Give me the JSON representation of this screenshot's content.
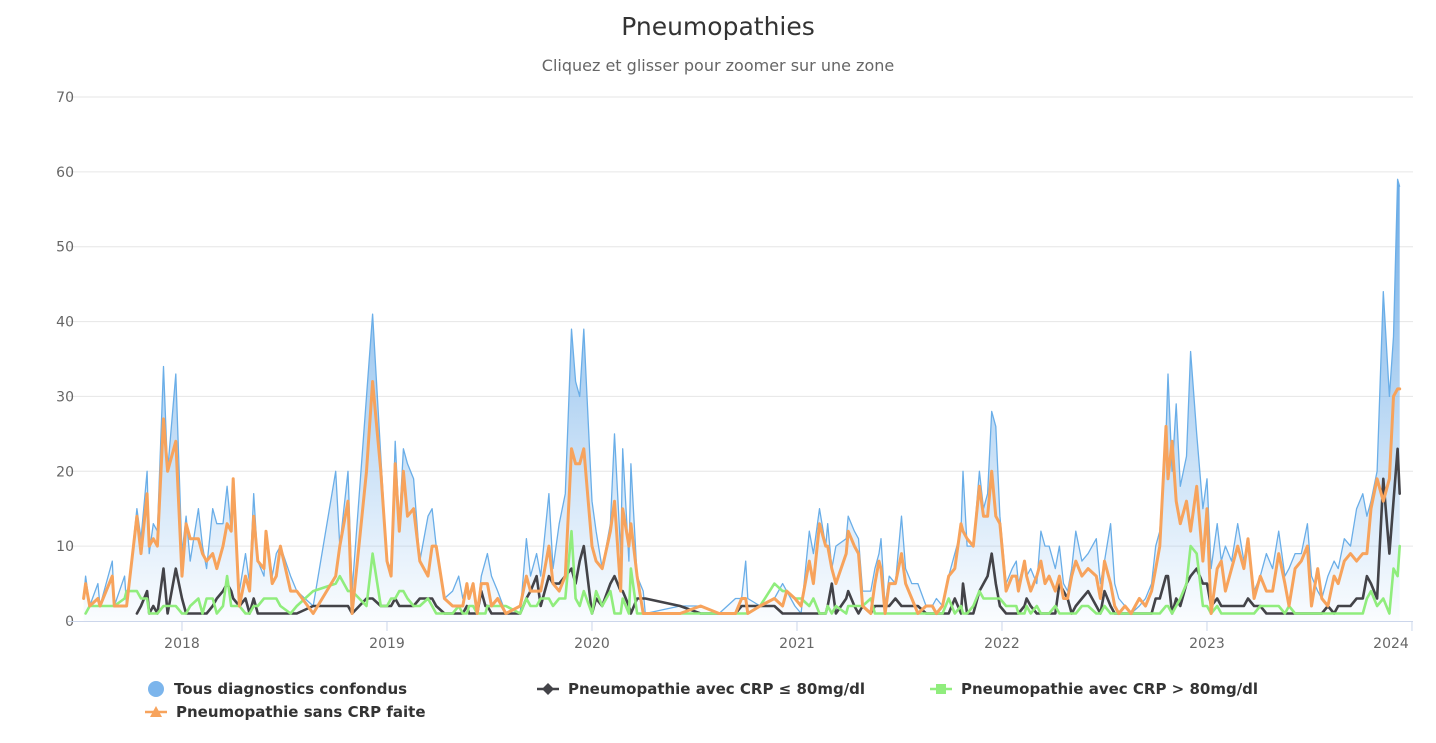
{
  "chart_data": {
    "type": "line",
    "title": "Pneumopathies",
    "subtitle": "Cliquez et glisser pour zoomer sur une zone",
    "xlabel": "",
    "ylabel": "",
    "xlim": [
      2017.444,
      2024.005
    ],
    "ylim": [
      0,
      70
    ],
    "grid": true,
    "legend_position": "bottom",
    "x_ticks": [
      "2018",
      "2019",
      "2020",
      "2021",
      "2022",
      "2023",
      "2024"
    ],
    "y_ticks": [
      "0",
      "10",
      "20",
      "30",
      "40",
      "50",
      "60",
      "70"
    ],
    "x": [
      2017.52,
      2017.53,
      2017.55,
      2017.59,
      2017.6,
      2017.66,
      2017.67,
      2017.72,
      2017.73,
      2017.78,
      2017.8,
      2017.83,
      2017.84,
      2017.86,
      2017.88,
      2017.91,
      2017.93,
      2017.97,
      2018.0,
      2018.02,
      2018.04,
      2018.08,
      2018.1,
      2018.12,
      2018.15,
      2018.17,
      2018.2,
      2018.22,
      2018.24,
      2018.25,
      2018.28,
      2018.31,
      2018.33,
      2018.35,
      2018.37,
      2018.4,
      2018.41,
      2018.44,
      2018.46,
      2018.48,
      2018.53,
      2018.56,
      2018.64,
      2018.75,
      2018.77,
      2018.81,
      2018.83,
      2018.9,
      2018.93,
      2018.97,
      2019.0,
      2019.02,
      2019.04,
      2019.06,
      2019.08,
      2019.1,
      2019.13,
      2019.16,
      2019.2,
      2019.22,
      2019.24,
      2019.28,
      2019.32,
      2019.35,
      2019.37,
      2019.39,
      2019.4,
      2019.42,
      2019.44,
      2019.46,
      2019.48,
      2019.49,
      2019.51,
      2019.54,
      2019.58,
      2019.65,
      2019.68,
      2019.7,
      2019.73,
      2019.75,
      2019.79,
      2019.81,
      2019.84,
      2019.87,
      2019.9,
      2019.92,
      2019.94,
      2019.96,
      2020.0,
      2020.02,
      2020.05,
      2020.09,
      2020.11,
      2020.14,
      2020.15,
      2020.18,
      2020.19,
      2020.22,
      2020.25,
      2020.26,
      2020.43,
      2020.53,
      2020.62,
      2020.7,
      2020.73,
      2020.75,
      2020.76,
      2020.82,
      2020.89,
      2020.93,
      2020.95,
      2020.99,
      2021.02,
      2021.06,
      2021.08,
      2021.11,
      2021.14,
      2021.15,
      2021.17,
      2021.19,
      2021.24,
      2021.25,
      2021.28,
      2021.3,
      2021.32,
      2021.36,
      2021.38,
      2021.4,
      2021.41,
      2021.43,
      2021.45,
      2021.48,
      2021.51,
      2021.53,
      2021.56,
      2021.59,
      2021.63,
      2021.66,
      2021.68,
      2021.71,
      2021.74,
      2021.77,
      2021.8,
      2021.81,
      2021.83,
      2021.86,
      2021.89,
      2021.91,
      2021.93,
      2021.95,
      2021.97,
      2021.99,
      2022.02,
      2022.05,
      2022.07,
      2022.08,
      2022.11,
      2022.12,
      2022.14,
      2022.17,
      2022.19,
      2022.21,
      2022.23,
      2022.26,
      2022.28,
      2022.3,
      2022.32,
      2022.34,
      2022.36,
      2022.39,
      2022.42,
      2022.46,
      2022.48,
      2022.5,
      2022.53,
      2022.55,
      2022.57,
      2022.6,
      2022.63,
      2022.67,
      2022.7,
      2022.73,
      2022.75,
      2022.77,
      2022.8,
      2022.81,
      2022.83,
      2022.85,
      2022.87,
      2022.9,
      2022.92,
      2022.95,
      2022.98,
      2023.0,
      2023.02,
      2023.05,
      2023.07,
      2023.09,
      2023.12,
      2023.15,
      2023.18,
      2023.2,
      2023.23,
      2023.26,
      2023.29,
      2023.32,
      2023.35,
      2023.38,
      2023.4,
      2023.43,
      2023.46,
      2023.49,
      2023.51,
      2023.54,
      2023.56,
      2023.59,
      2023.62,
      2023.64,
      2023.67,
      2023.7,
      2023.73,
      2023.76,
      2023.78,
      2023.8,
      2023.83,
      2023.86,
      2023.89,
      2023.91,
      2023.93,
      2023.94
    ],
    "series": [
      {
        "name": "Tous diagnostics confondus",
        "kind": "area",
        "color": "#7cb5ec",
        "marker": "circle",
        "values": [
          3,
          6,
          2,
          5,
          2,
          8,
          2,
          6,
          2,
          15,
          11,
          20,
          9,
          13,
          12,
          34,
          20,
          33,
          9,
          14,
          8,
          15,
          10,
          7,
          15,
          13,
          13,
          18,
          12,
          18,
          4,
          9,
          5,
          17,
          8,
          6,
          12,
          6,
          9,
          10,
          6,
          4,
          2,
          20,
          10,
          20,
          4,
          30,
          41,
          22,
          8,
          7,
          24,
          13,
          23,
          21,
          19,
          8,
          14,
          15,
          10,
          3,
          4,
          6,
          3,
          5,
          3,
          5,
          1,
          6,
          8,
          9,
          6,
          4,
          1,
          1,
          11,
          6,
          9,
          6,
          17,
          7,
          13,
          17,
          39,
          32,
          30,
          39,
          16,
          12,
          7,
          13,
          25,
          9,
          23,
          8,
          21,
          6,
          4,
          1,
          2,
          2,
          1,
          3,
          3,
          8,
          3,
          2,
          3,
          5,
          4,
          2,
          1,
          12,
          9,
          15,
          10,
          13,
          7,
          10,
          11,
          14,
          12,
          11,
          4,
          4,
          7,
          9,
          11,
          2,
          6,
          5,
          14,
          7,
          5,
          5,
          2,
          2,
          3,
          2,
          6,
          9,
          12,
          20,
          10,
          10,
          20,
          15,
          17,
          28,
          26,
          14,
          5,
          7,
          8,
          5,
          8,
          6,
          7,
          5,
          12,
          10,
          10,
          7,
          10,
          5,
          4,
          7,
          12,
          8,
          9,
          11,
          5,
          8,
          13,
          5,
          3,
          2,
          1,
          2,
          3,
          5,
          10,
          12,
          25,
          33,
          20,
          29,
          18,
          22,
          36,
          25,
          15,
          19,
          7,
          13,
          8,
          10,
          8,
          13,
          8,
          11,
          4,
          6,
          9,
          7,
          12,
          6,
          7,
          9,
          9,
          13,
          6,
          4,
          3,
          6,
          8,
          7,
          11,
          10,
          15,
          17,
          14,
          16,
          20,
          44,
          30,
          38,
          59,
          58
        ]
      },
      {
        "name": "Pneumopathie avec CRP ≤ 80mg/dl",
        "kind": "line",
        "color": "#434348",
        "marker": "diamond",
        "values": [
          null,
          null,
          null,
          null,
          null,
          null,
          null,
          null,
          null,
          1,
          2,
          4,
          1,
          2,
          1,
          7,
          1,
          7,
          3,
          1,
          1,
          1,
          1,
          1,
          2,
          3,
          4,
          5,
          4,
          3,
          2,
          3,
          1,
          3,
          1,
          1,
          1,
          1,
          1,
          1,
          1,
          1,
          2,
          2,
          2,
          2,
          1,
          3,
          3,
          2,
          2,
          2,
          3,
          2,
          2,
          2,
          2,
          3,
          3,
          3,
          2,
          1,
          1,
          1,
          1,
          2,
          1,
          1,
          1,
          4,
          2,
          2,
          1,
          1,
          1,
          1,
          3,
          4,
          6,
          2,
          6,
          5,
          5,
          6,
          7,
          5,
          8,
          10,
          1,
          3,
          2,
          5,
          6,
          4,
          4,
          2,
          1,
          3,
          3,
          3,
          2,
          1,
          1,
          1,
          2,
          2,
          2,
          2,
          2,
          1,
          1,
          1,
          1,
          1,
          1,
          1,
          1,
          2,
          5,
          1,
          3,
          4,
          2,
          1,
          2,
          1,
          2,
          2,
          2,
          2,
          2,
          3,
          2,
          2,
          2,
          2,
          1,
          1,
          1,
          1,
          1,
          3,
          1,
          5,
          1,
          1,
          4,
          5,
          6,
          9,
          5,
          2,
          1,
          1,
          1,
          1,
          2,
          3,
          2,
          1,
          1,
          1,
          1,
          1,
          5,
          4,
          3,
          1,
          2,
          3,
          4,
          2,
          1,
          4,
          2,
          1,
          1,
          1,
          1,
          1,
          1,
          1,
          3,
          3,
          6,
          6,
          1,
          3,
          2,
          5,
          6,
          7,
          5,
          5,
          2,
          3,
          2,
          2,
          2,
          2,
          2,
          3,
          2,
          2,
          1,
          1,
          1,
          1,
          1,
          1,
          1,
          1,
          1,
          1,
          1,
          2,
          1,
          2,
          2,
          2,
          3,
          3,
          6,
          5,
          3,
          19,
          9,
          16,
          23,
          17
        ]
      },
      {
        "name": "Pneumopathie avec CRP > 80mg/dl",
        "kind": "line",
        "color": "#90ed7d",
        "marker": "square",
        "values": [
          null,
          1,
          2,
          2,
          2,
          2,
          2,
          3,
          4,
          4,
          3,
          3,
          1,
          1,
          1,
          2,
          2,
          2,
          1,
          1,
          2,
          3,
          1,
          3,
          3,
          1,
          2,
          6,
          2,
          2,
          2,
          1,
          1,
          2,
          2,
          3,
          3,
          3,
          3,
          2,
          1,
          2,
          4,
          5,
          6,
          4,
          4,
          2,
          9,
          2,
          2,
          3,
          3,
          4,
          4,
          3,
          2,
          2,
          3,
          2,
          1,
          1,
          1,
          2,
          1,
          1,
          2,
          2,
          1,
          1,
          1,
          2,
          2,
          2,
          2,
          1,
          3,
          2,
          2,
          3,
          3,
          2,
          3,
          3,
          12,
          3,
          2,
          4,
          1,
          4,
          2,
          4,
          1,
          1,
          3,
          1,
          7,
          1,
          1,
          1,
          1,
          1,
          1,
          1,
          1,
          1,
          1,
          2,
          5,
          4,
          4,
          3,
          3,
          2,
          3,
          1,
          1,
          2,
          1,
          2,
          1,
          2,
          2,
          2,
          2,
          3,
          1,
          1,
          1,
          1,
          1,
          1,
          1,
          1,
          1,
          1,
          1,
          1,
          1,
          1,
          3,
          1,
          2,
          1,
          1,
          2,
          4,
          3,
          3,
          3,
          3,
          3,
          2,
          2,
          2,
          1,
          1,
          2,
          1,
          2,
          1,
          1,
          1,
          2,
          1,
          1,
          1,
          1,
          1,
          2,
          2,
          1,
          1,
          2,
          1,
          1,
          1,
          1,
          1,
          1,
          1,
          1,
          1,
          1,
          2,
          2,
          1,
          2,
          3,
          5,
          10,
          9,
          2,
          2,
          1,
          2,
          1,
          1,
          1,
          1,
          1,
          1,
          1,
          2,
          2,
          2,
          2,
          1,
          2,
          1,
          1,
          1,
          1,
          1,
          1,
          1,
          1,
          1,
          1,
          1,
          1,
          1,
          3,
          4,
          2,
          3,
          1,
          7,
          6,
          10
        ]
      },
      {
        "name": "Pneumopathie sans CRP faite",
        "kind": "line",
        "color": "#f7a35c",
        "marker": "triangle",
        "values": [
          3,
          5,
          2,
          3,
          2,
          6,
          2,
          2,
          2,
          14,
          9,
          17,
          10,
          11,
          10,
          27,
          20,
          24,
          6,
          13,
          11,
          11,
          9,
          8,
          9,
          7,
          10,
          13,
          12,
          19,
          2,
          6,
          4,
          14,
          8,
          7,
          12,
          5,
          6,
          10,
          4,
          4,
          1,
          6,
          10,
          16,
          1,
          20,
          32,
          20,
          8,
          6,
          21,
          12,
          20,
          14,
          15,
          8,
          6,
          10,
          10,
          3,
          2,
          2,
          2,
          5,
          3,
          5,
          1,
          5,
          5,
          5,
          2,
          3,
          1,
          2,
          6,
          4,
          4,
          4,
          10,
          5,
          4,
          6,
          23,
          21,
          21,
          23,
          10,
          8,
          7,
          12,
          16,
          4,
          15,
          10,
          13,
          6,
          1,
          1,
          1,
          2,
          1,
          1,
          3,
          3,
          1,
          2,
          3,
          2,
          4,
          3,
          2,
          8,
          5,
          13,
          10,
          10,
          7,
          5,
          9,
          12,
          10,
          9,
          2,
          1,
          5,
          8,
          7,
          1,
          5,
          5,
          9,
          5,
          3,
          1,
          2,
          2,
          1,
          2,
          6,
          7,
          13,
          12,
          11,
          10,
          18,
          14,
          14,
          20,
          14,
          13,
          4,
          6,
          6,
          4,
          8,
          6,
          4,
          6,
          8,
          5,
          6,
          4,
          6,
          3,
          3,
          6,
          8,
          6,
          7,
          6,
          3,
          8,
          5,
          2,
          1,
          2,
          1,
          3,
          2,
          4,
          7,
          10,
          26,
          19,
          24,
          16,
          13,
          16,
          12,
          18,
          8,
          15,
          1,
          7,
          8,
          4,
          7,
          10,
          7,
          11,
          3,
          6,
          4,
          4,
          9,
          5,
          2,
          7,
          8,
          10,
          2,
          7,
          3,
          2,
          6,
          5,
          8,
          9,
          8,
          9,
          9,
          15,
          19,
          16,
          19,
          30,
          31,
          31
        ]
      }
    ]
  },
  "legend": {
    "items": [
      {
        "label": "Tous diagnostics confondus",
        "icon": "circle-icon"
      },
      {
        "label": "Pneumopathie avec CRP ≤ 80mg/dl",
        "icon": "diamond-icon"
      },
      {
        "label": "Pneumopathie avec CRP > 80mg/dl",
        "icon": "square-icon"
      },
      {
        "label": "Pneumopathie sans CRP faite",
        "icon": "triangle-icon"
      }
    ]
  }
}
